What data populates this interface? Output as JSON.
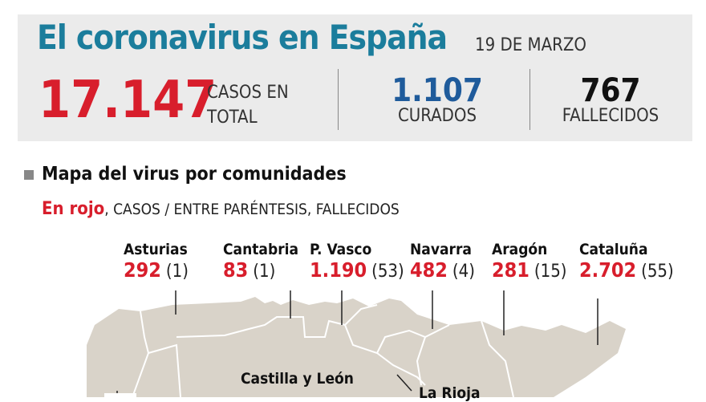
{
  "header": {
    "title": "El coronavirus en España",
    "date": "19 DE MARZO"
  },
  "stats": {
    "total": "17.147",
    "total_label": "CASOS EN TOTAL",
    "cured": "1.107",
    "cured_label": "CURADOS",
    "deaths": "767",
    "deaths_label": "FALLECIDOS"
  },
  "section": {
    "title": "Mapa del virus por comunidades",
    "legend_red": "En rojo",
    "legend_rest": ", CASOS / ENTRE PARÉNTESIS, FALLECIDOS"
  },
  "regions": [
    {
      "name": "Asturias",
      "cases": "292",
      "deaths": "(1)"
    },
    {
      "name": "Cantabria",
      "cases": "83",
      "deaths": "(1)"
    },
    {
      "name": "P. Vasco",
      "cases": "1.190",
      "deaths": "(53)"
    },
    {
      "name": "Navarra",
      "cases": "482",
      "deaths": "(4)"
    },
    {
      "name": "Aragón",
      "cases": "281",
      "deaths": "(15)"
    },
    {
      "name": "Cataluña",
      "cases": "2.702",
      "deaths": "(55)"
    }
  ],
  "map_labels": {
    "cyl": "Castilla y León",
    "rioja": "La Rioja"
  },
  "colors": {
    "title": "#1b7d9c",
    "cases": "#d81e2c",
    "cured": "#1f5b9b",
    "map": "#d9d3c9"
  }
}
